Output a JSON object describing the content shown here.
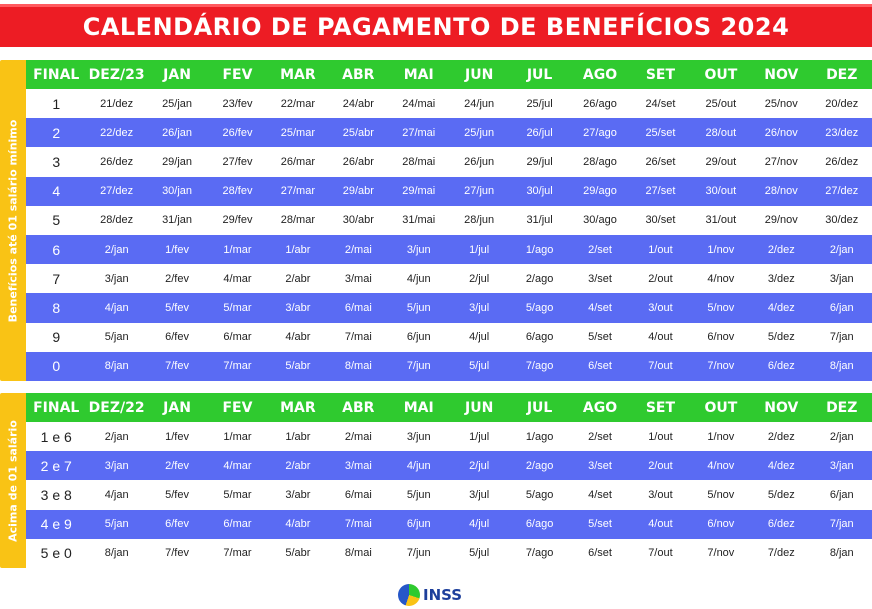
{
  "title": "CALENDÁRIO DE PAGAMENTO DE BENEFÍCIOS 2024",
  "colors": {
    "title_bg": "#ed1c24",
    "header_bg": "#2fca2f",
    "side_bg": "#f9c315",
    "row_blue": "#5a6bf3"
  },
  "section1": {
    "side_label": "Benefícios até 01 salário mínimo",
    "headers": [
      "FINAL",
      "DEZ/23",
      "JAN",
      "FEV",
      "MAR",
      "ABR",
      "MAI",
      "JUN",
      "JUL",
      "AGO",
      "SET",
      "OUT",
      "NOV",
      "DEZ"
    ],
    "rows": [
      [
        "1",
        "21/dez",
        "25/jan",
        "23/fev",
        "22/mar",
        "24/abr",
        "24/mai",
        "24/jun",
        "25/jul",
        "26/ago",
        "24/set",
        "25/out",
        "25/nov",
        "20/dez"
      ],
      [
        "2",
        "22/dez",
        "26/jan",
        "26/fev",
        "25/mar",
        "25/abr",
        "27/mai",
        "25/jun",
        "26/jul",
        "27/ago",
        "25/set",
        "28/out",
        "26/nov",
        "23/dez"
      ],
      [
        "3",
        "26/dez",
        "29/jan",
        "27/fev",
        "26/mar",
        "26/abr",
        "28/mai",
        "26/jun",
        "29/jul",
        "28/ago",
        "26/set",
        "29/out",
        "27/nov",
        "26/dez"
      ],
      [
        "4",
        "27/dez",
        "30/jan",
        "28/fev",
        "27/mar",
        "29/abr",
        "29/mai",
        "27/jun",
        "30/jul",
        "29/ago",
        "27/set",
        "30/out",
        "28/nov",
        "27/dez"
      ],
      [
        "5",
        "28/dez",
        "31/jan",
        "29/fev",
        "28/mar",
        "30/abr",
        "31/mai",
        "28/jun",
        "31/jul",
        "30/ago",
        "30/set",
        "31/out",
        "29/nov",
        "30/dez"
      ],
      [
        "6",
        "2/jan",
        "1/fev",
        "1/mar",
        "1/abr",
        "2/mai",
        "3/jun",
        "1/jul",
        "1/ago",
        "2/set",
        "1/out",
        "1/nov",
        "2/dez",
        "2/jan"
      ],
      [
        "7",
        "3/jan",
        "2/fev",
        "4/mar",
        "2/abr",
        "3/mai",
        "4/jun",
        "2/jul",
        "2/ago",
        "3/set",
        "2/out",
        "4/nov",
        "3/dez",
        "3/jan"
      ],
      [
        "8",
        "4/jan",
        "5/fev",
        "5/mar",
        "3/abr",
        "6/mai",
        "5/jun",
        "3/jul",
        "5/ago",
        "4/set",
        "3/out",
        "5/nov",
        "4/dez",
        "6/jan"
      ],
      [
        "9",
        "5/jan",
        "6/fev",
        "6/mar",
        "4/abr",
        "7/mai",
        "6/jun",
        "4/jul",
        "6/ago",
        "5/set",
        "4/out",
        "6/nov",
        "5/dez",
        "7/jan"
      ],
      [
        "0",
        "8/jan",
        "7/fev",
        "7/mar",
        "5/abr",
        "8/mai",
        "7/jun",
        "5/jul",
        "7/ago",
        "6/set",
        "7/out",
        "7/nov",
        "6/dez",
        "8/jan"
      ]
    ]
  },
  "section2": {
    "side_label": "Acima de 01 salário",
    "headers": [
      "FINAL",
      "DEZ/22",
      "JAN",
      "FEV",
      "MAR",
      "ABR",
      "MAI",
      "JUN",
      "JUL",
      "AGO",
      "SET",
      "OUT",
      "NOV",
      "DEZ"
    ],
    "rows": [
      [
        "1 e 6",
        "2/jan",
        "1/fev",
        "1/mar",
        "1/abr",
        "2/mai",
        "3/jun",
        "1/jul",
        "1/ago",
        "2/set",
        "1/out",
        "1/nov",
        "2/dez",
        "2/jan"
      ],
      [
        "2 e 7",
        "3/jan",
        "2/fev",
        "4/mar",
        "2/abr",
        "3/mai",
        "4/jun",
        "2/jul",
        "2/ago",
        "3/set",
        "2/out",
        "4/nov",
        "4/dez",
        "3/jan"
      ],
      [
        "3 e 8",
        "4/jan",
        "5/fev",
        "5/mar",
        "3/abr",
        "6/mai",
        "5/jun",
        "3/jul",
        "5/ago",
        "4/set",
        "3/out",
        "5/nov",
        "5/dez",
        "6/jan"
      ],
      [
        "4 e 9",
        "5/jan",
        "6/fev",
        "6/mar",
        "4/abr",
        "7/mai",
        "6/jun",
        "4/jul",
        "6/ago",
        "5/set",
        "4/out",
        "6/nov",
        "6/dez",
        "7/jan"
      ],
      [
        "5 e 0",
        "8/jan",
        "7/fev",
        "7/mar",
        "5/abr",
        "8/mai",
        "7/jun",
        "5/jul",
        "7/ago",
        "6/set",
        "7/out",
        "7/nov",
        "7/dez",
        "8/jan"
      ]
    ]
  },
  "footer": {
    "logo_text": "INSS"
  }
}
